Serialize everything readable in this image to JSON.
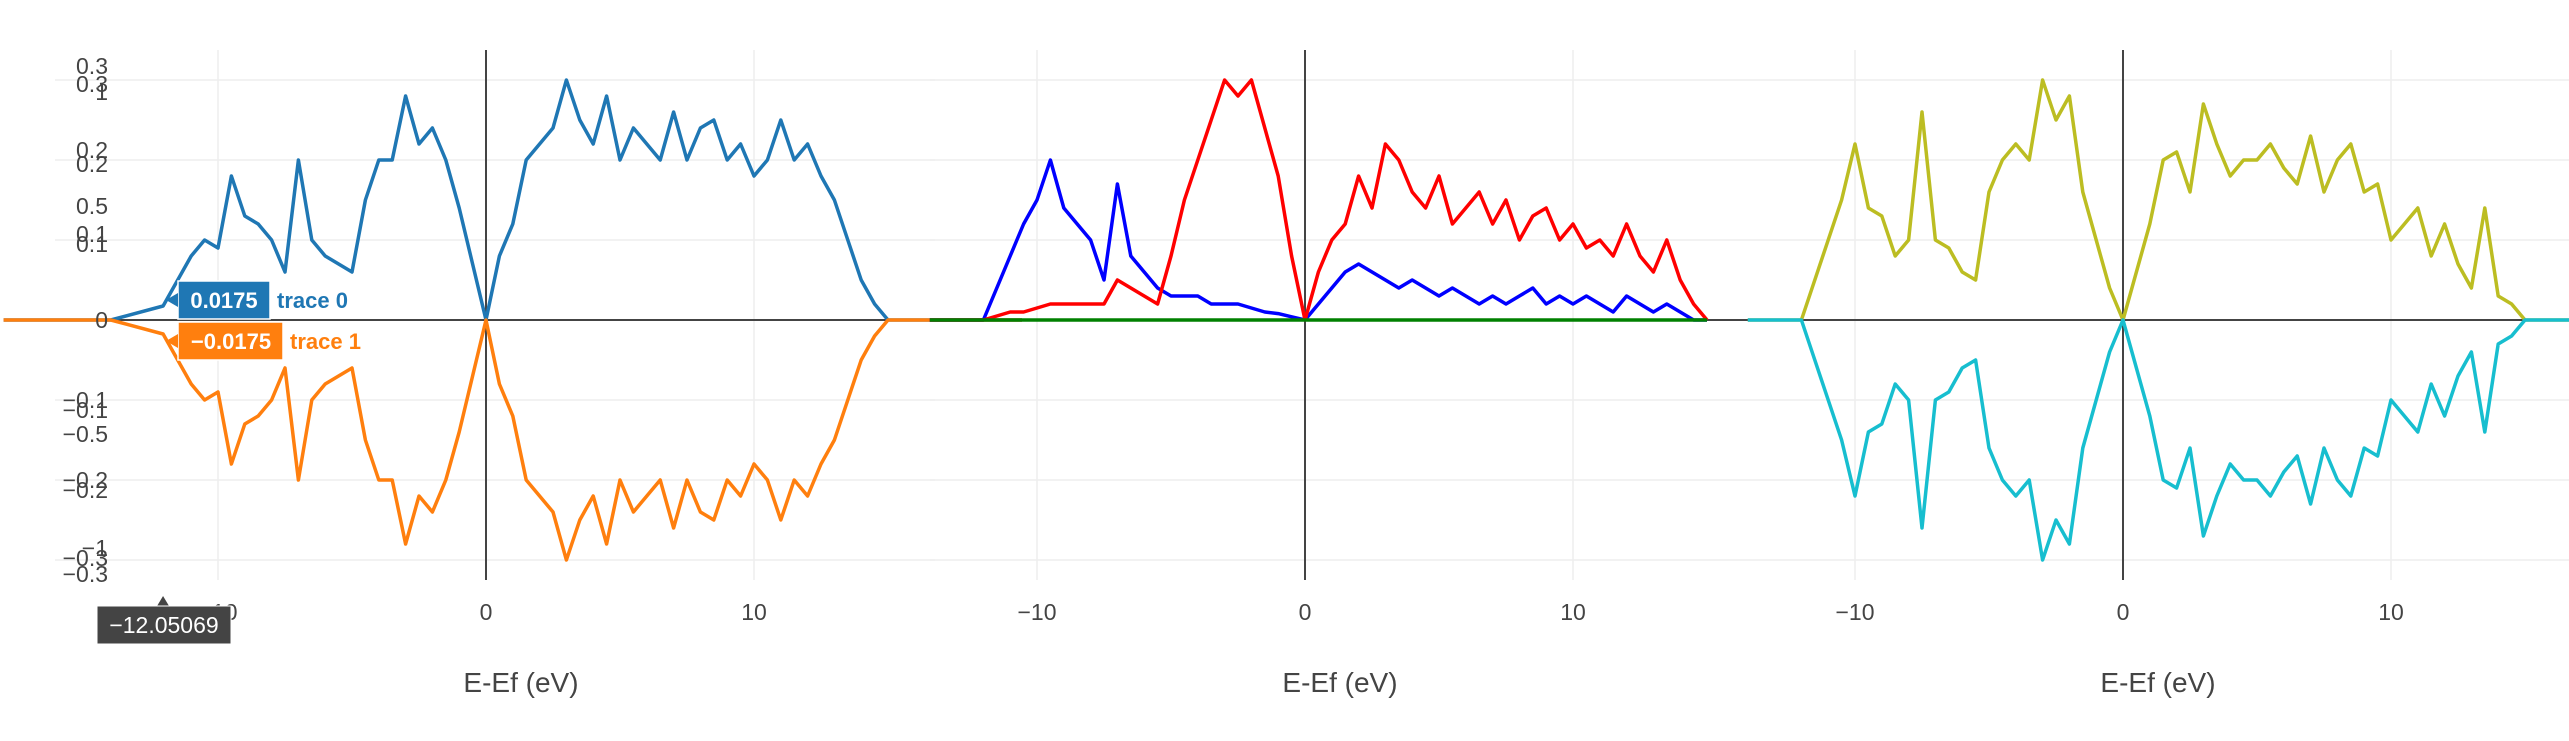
{
  "chart_data": [
    {
      "type": "line",
      "xlabel": "E-Ef (eV)",
      "x_ticks": [
        -10,
        0,
        10
      ],
      "x_tick_labels": [
        "−10",
        "0",
        "10"
      ],
      "y_tick_labels": [
        "0.3",
        "0.3",
        "1",
        "0.2",
        "0.2",
        "0.5",
        "0.1",
        "0.1",
        "0",
        "−0.1",
        "−0.1",
        "−0.5",
        "−0.2",
        "−0.2",
        "−1",
        "−0.3",
        "−0.3"
      ],
      "series": [
        {
          "name": "trace 0",
          "color": "#1f77b4",
          "x": [
            -18,
            -14,
            -12.05,
            -11,
            -10.5,
            -10,
            -9.5,
            -9,
            -8.5,
            -8,
            -7.5,
            -7,
            -6.5,
            -6,
            -5.5,
            -5,
            -4.5,
            -4,
            -3.5,
            -3,
            -2.5,
            -2,
            -1.5,
            -1,
            -0.5,
            0,
            0.5,
            1,
            1.5,
            2,
            2.5,
            3,
            3.5,
            4,
            4.5,
            5,
            5.5,
            6,
            6.5,
            7,
            7.5,
            8,
            8.5,
            9,
            9.5,
            10,
            10.5,
            11,
            11.5,
            12,
            12.5,
            13,
            13.5,
            14,
            14.5,
            15,
            20
          ],
          "y": [
            0,
            0,
            0.0175,
            0.08,
            0.1,
            0.09,
            0.18,
            0.13,
            0.12,
            0.1,
            0.06,
            0.2,
            0.1,
            0.08,
            0.07,
            0.06,
            0.15,
            0.2,
            0.2,
            0.28,
            0.22,
            0.24,
            0.2,
            0.14,
            0.07,
            0,
            0.08,
            0.12,
            0.2,
            0.22,
            0.24,
            0.3,
            0.25,
            0.22,
            0.28,
            0.2,
            0.24,
            0.22,
            0.2,
            0.26,
            0.2,
            0.24,
            0.25,
            0.2,
            0.22,
            0.18,
            0.2,
            0.25,
            0.2,
            0.22,
            0.18,
            0.15,
            0.1,
            0.05,
            0.02,
            0,
            0
          ]
        },
        {
          "name": "trace 1",
          "color": "#ff7f0e",
          "x": [
            -18,
            -14,
            -12.05,
            -11,
            -10.5,
            -10,
            -9.5,
            -9,
            -8.5,
            -8,
            -7.5,
            -7,
            -6.5,
            -6,
            -5.5,
            -5,
            -4.5,
            -4,
            -3.5,
            -3,
            -2.5,
            -2,
            -1.5,
            -1,
            -0.5,
            0,
            0.5,
            1,
            1.5,
            2,
            2.5,
            3,
            3.5,
            4,
            4.5,
            5,
            5.5,
            6,
            6.5,
            7,
            7.5,
            8,
            8.5,
            9,
            9.5,
            10,
            10.5,
            11,
            11.5,
            12,
            12.5,
            13,
            13.5,
            14,
            14.5,
            15,
            20
          ],
          "y": [
            0,
            0,
            -0.0175,
            -0.08,
            -0.1,
            -0.09,
            -0.18,
            -0.13,
            -0.12,
            -0.1,
            -0.06,
            -0.2,
            -0.1,
            -0.08,
            -0.07,
            -0.06,
            -0.15,
            -0.2,
            -0.2,
            -0.28,
            -0.22,
            -0.24,
            -0.2,
            -0.14,
            -0.07,
            0,
            -0.08,
            -0.12,
            -0.2,
            -0.22,
            -0.24,
            -0.3,
            -0.25,
            -0.22,
            -0.28,
            -0.2,
            -0.24,
            -0.22,
            -0.2,
            -0.26,
            -0.2,
            -0.24,
            -0.25,
            -0.2,
            -0.22,
            -0.18,
            -0.2,
            -0.25,
            -0.2,
            -0.22,
            -0.18,
            -0.15,
            -0.1,
            -0.05,
            -0.02,
            0,
            0
          ]
        }
      ],
      "hover": {
        "x_label": "−12.05069",
        "items": [
          {
            "value": "0.0175",
            "name": "trace 0"
          },
          {
            "value": "−0.0175",
            "name": "trace 1"
          }
        ]
      }
    },
    {
      "type": "line",
      "xlabel": "E-Ef (eV)",
      "x_ticks": [
        -10,
        0,
        10
      ],
      "x_tick_labels": [
        "−10",
        "0",
        "10"
      ],
      "series": [
        {
          "color": "#0000ff",
          "x": [
            -14,
            -12,
            -11,
            -10.5,
            -10,
            -9.5,
            -9,
            -8.5,
            -8,
            -7.5,
            -7,
            -6.5,
            -6,
            -5.5,
            -5,
            -4.5,
            -4,
            -3.5,
            -3,
            -2.5,
            -2,
            -1.5,
            -1,
            -0.5,
            0,
            0.5,
            1,
            1.5,
            2,
            2.5,
            3,
            3.5,
            4,
            4.5,
            5,
            5.5,
            6,
            6.5,
            7,
            7.5,
            8,
            8.5,
            9,
            9.5,
            10,
            10.5,
            11,
            11.5,
            12,
            12.5,
            13,
            13.5,
            14,
            14.5,
            15
          ],
          "y": [
            0,
            0,
            0.08,
            0.12,
            0.15,
            0.2,
            0.14,
            0.12,
            0.1,
            0.05,
            0.17,
            0.08,
            0.06,
            0.04,
            0.03,
            0.03,
            0.03,
            0.02,
            0.02,
            0.02,
            0.015,
            0.01,
            0.008,
            0.004,
            0,
            0.02,
            0.04,
            0.06,
            0.07,
            0.06,
            0.05,
            0.04,
            0.05,
            0.04,
            0.03,
            0.04,
            0.03,
            0.02,
            0.03,
            0.02,
            0.03,
            0.04,
            0.02,
            0.03,
            0.02,
            0.03,
            0.02,
            0.01,
            0.03,
            0.02,
            0.01,
            0.02,
            0.01,
            0,
            0
          ]
        },
        {
          "color": "#ff0000",
          "x": [
            -14,
            -12,
            -11,
            -10.5,
            -10,
            -9.5,
            -9,
            -8.5,
            -8,
            -7.5,
            -7,
            -6.5,
            -6,
            -5.5,
            -5,
            -4.5,
            -4,
            -3.5,
            -3,
            -2.5,
            -2,
            -1.5,
            -1,
            -0.5,
            0,
            0.5,
            1,
            1.5,
            2,
            2.5,
            3,
            3.5,
            4,
            4.5,
            5,
            5.5,
            6,
            6.5,
            7,
            7.5,
            8,
            8.5,
            9,
            9.5,
            10,
            10.5,
            11,
            11.5,
            12,
            12.5,
            13,
            13.5,
            14,
            14.5,
            15
          ],
          "y": [
            0,
            0,
            0.01,
            0.01,
            0.015,
            0.02,
            0.02,
            0.02,
            0.02,
            0.02,
            0.05,
            0.04,
            0.03,
            0.02,
            0.08,
            0.15,
            0.2,
            0.25,
            0.3,
            0.28,
            0.3,
            0.24,
            0.18,
            0.08,
            0,
            0.06,
            0.1,
            0.12,
            0.18,
            0.14,
            0.22,
            0.2,
            0.16,
            0.14,
            0.18,
            0.12,
            0.14,
            0.16,
            0.12,
            0.15,
            0.1,
            0.13,
            0.14,
            0.1,
            0.12,
            0.09,
            0.1,
            0.08,
            0.12,
            0.08,
            0.06,
            0.1,
            0.05,
            0.02,
            0
          ]
        },
        {
          "color": "#008000",
          "x": [
            -14,
            15
          ],
          "y": [
            0,
            0
          ]
        }
      ]
    },
    {
      "type": "line",
      "xlabel": "E-Ef (eV)",
      "x_ticks": [
        -10,
        0,
        10
      ],
      "x_tick_labels": [
        "−10",
        "0",
        "10"
      ],
      "series": [
        {
          "color": "#bcbd22",
          "x": [
            -14,
            -12,
            -11.5,
            -11,
            -10.5,
            -10,
            -9.5,
            -9,
            -8.5,
            -8,
            -7.5,
            -7,
            -6.5,
            -6,
            -5.5,
            -5,
            -4.5,
            -4,
            -3.5,
            -3,
            -2.5,
            -2,
            -1.5,
            -1,
            -0.5,
            0,
            0.5,
            1,
            1.5,
            2,
            2.5,
            3,
            3.5,
            4,
            4.5,
            5,
            5.5,
            6,
            6.5,
            7,
            7.5,
            8,
            8.5,
            9,
            9.5,
            10,
            10.5,
            11,
            11.5,
            12,
            12.5,
            13,
            13.5,
            14,
            14.5,
            15,
            17
          ],
          "y": [
            0,
            0,
            0.05,
            0.1,
            0.15,
            0.22,
            0.14,
            0.13,
            0.08,
            0.1,
            0.26,
            0.1,
            0.09,
            0.06,
            0.05,
            0.16,
            0.2,
            0.22,
            0.2,
            0.3,
            0.25,
            0.28,
            0.16,
            0.1,
            0.04,
            0,
            0.06,
            0.12,
            0.2,
            0.21,
            0.16,
            0.27,
            0.22,
            0.18,
            0.2,
            0.2,
            0.22,
            0.19,
            0.17,
            0.23,
            0.16,
            0.2,
            0.22,
            0.16,
            0.17,
            0.1,
            0.12,
            0.14,
            0.08,
            0.12,
            0.07,
            0.04,
            0.14,
            0.03,
            0.02,
            0,
            0
          ]
        },
        {
          "color": "#17becf",
          "x": [
            -14,
            -12,
            -11.5,
            -11,
            -10.5,
            -10,
            -9.5,
            -9,
            -8.5,
            -8,
            -7.5,
            -7,
            -6.5,
            -6,
            -5.5,
            -5,
            -4.5,
            -4,
            -3.5,
            -3,
            -2.5,
            -2,
            -1.5,
            -1,
            -0.5,
            0,
            0.5,
            1,
            1.5,
            2,
            2.5,
            3,
            3.5,
            4,
            4.5,
            5,
            5.5,
            6,
            6.5,
            7,
            7.5,
            8,
            8.5,
            9,
            9.5,
            10,
            10.5,
            11,
            11.5,
            12,
            12.5,
            13,
            13.5,
            14,
            14.5,
            15,
            17
          ],
          "y": [
            0,
            0,
            -0.05,
            -0.1,
            -0.15,
            -0.22,
            -0.14,
            -0.13,
            -0.08,
            -0.1,
            -0.26,
            -0.1,
            -0.09,
            -0.06,
            -0.05,
            -0.16,
            -0.2,
            -0.22,
            -0.2,
            -0.3,
            -0.25,
            -0.28,
            -0.16,
            -0.1,
            -0.04,
            0,
            -0.06,
            -0.12,
            -0.2,
            -0.21,
            -0.16,
            -0.27,
            -0.22,
            -0.18,
            -0.2,
            -0.2,
            -0.22,
            -0.19,
            -0.17,
            -0.23,
            -0.16,
            -0.2,
            -0.22,
            -0.16,
            -0.17,
            -0.1,
            -0.12,
            -0.14,
            -0.08,
            -0.12,
            -0.07,
            -0.04,
            -0.14,
            -0.03,
            -0.02,
            0,
            0
          ]
        }
      ]
    }
  ]
}
